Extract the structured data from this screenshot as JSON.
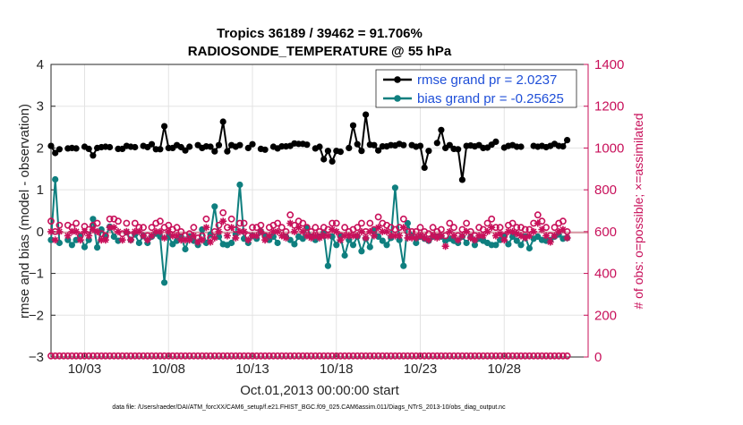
{
  "chart_data": {
    "type": "line",
    "title": "Tropics 36189 / 39462 = 91.706%",
    "subtitle": "RADIOSONDE_TEMPERATURE @ 55 hPa",
    "xlabel": "Oct.01,2013 00:00:00 start",
    "ylabel": "rmse and bias (model - observation)",
    "ylabel_right": "# of obs: o=possible; ×=assimilated",
    "ylim": [
      -3,
      4
    ],
    "ylim_right": [
      0,
      1400
    ],
    "xlim": [
      1,
      33
    ],
    "yticks": [
      "4",
      "3",
      "2",
      "1",
      "0",
      "−1",
      "−2",
      "−3"
    ],
    "yticks_right": [
      "1400",
      "1200",
      "1000",
      "800",
      "600",
      "400",
      "200",
      "0"
    ],
    "xticks": [
      {
        "pos": 3,
        "label": "10/03"
      },
      {
        "pos": 8,
        "label": "10/08"
      },
      {
        "pos": 13,
        "label": "10/13"
      },
      {
        "pos": 18,
        "label": "10/18"
      },
      {
        "pos": 23,
        "label": "10/23"
      },
      {
        "pos": 28,
        "label": "10/28"
      }
    ],
    "x_start": 1.0,
    "x_step": 0.25,
    "series": [
      {
        "name": "rmse grand pr = 2.0237",
        "axis": "left",
        "color": "#000000",
        "marker": "dot",
        "values": [
          2.05,
          1.88,
          1.97,
          null,
          1.99,
          2.0,
          1.99,
          null,
          2.03,
          1.98,
          1.82,
          2.0,
          2.02,
          2.03,
          2.02,
          null,
          1.98,
          1.98,
          2.05,
          2.03,
          2.02,
          null,
          2.05,
          2.02,
          2.09,
          1.97,
          1.97,
          2.52,
          2.0,
          2.0,
          2.07,
          2.02,
          1.94,
          2.03,
          null,
          2.07,
          2.0,
          2.04,
          2.03,
          1.92,
          2.07,
          2.63,
          1.92,
          2.07,
          2.03,
          2.07,
          null,
          2.0,
          2.09,
          null,
          1.98,
          1.96,
          null,
          2.03,
          1.99,
          2.04,
          2.04,
          2.05,
          2.11,
          2.1,
          2.1,
          2.08,
          null,
          1.99,
          2.03,
          1.73,
          1.93,
          1.68,
          1.93,
          1.91,
          null,
          2.0,
          2.54,
          2.09,
          1.93,
          2.8,
          2.08,
          2.07,
          1.94,
          2.04,
          2.04,
          2.07,
          2.06,
          2.1,
          2.07,
          null,
          2.07,
          2.03,
          2.05,
          1.53,
          1.93,
          null,
          2.12,
          2.43,
          2.0,
          2.07,
          1.98,
          1.97,
          1.24,
          2.05,
          2.06,
          2.04,
          2.07,
          2.0,
          2.01,
          2.08,
          2.15,
          null,
          2.01,
          2.05,
          2.07,
          2.03,
          2.03,
          null,
          null,
          2.05,
          2.03,
          2.05,
          2.02,
          2.05,
          2.1,
          2.05,
          2.04,
          2.19
        ],
        "legend": "rmse grand pr = 2.0237"
      },
      {
        "name": "bias grand pr = -0.25625",
        "axis": "left",
        "color": "#0f7f7f",
        "marker": "dot",
        "values": [
          -0.2,
          1.25,
          -0.27,
          null,
          -0.2,
          -0.32,
          -0.2,
          -0.1,
          -0.37,
          -0.2,
          0.3,
          -0.38,
          0.05,
          -0.12,
          0.12,
          -0.12,
          -0.22,
          null,
          -0.02,
          -0.2,
          -0.07,
          -0.27,
          -0.1,
          -0.27,
          -0.12,
          -0.05,
          -0.12,
          -1.22,
          -0.12,
          -0.3,
          -0.22,
          -0.12,
          -0.42,
          -0.12,
          -0.22,
          -0.32,
          0.05,
          -0.27,
          -0.07,
          0.6,
          -0.12,
          -0.3,
          -0.32,
          -0.27,
          -0.07,
          1.12,
          -0.17,
          -0.27,
          -0.1,
          -0.17,
          0.0,
          -0.12,
          -0.2,
          -0.12,
          -0.27,
          null,
          -0.12,
          -0.2,
          -0.3,
          -0.12,
          -0.17,
          0.1,
          -0.12,
          -0.2,
          -0.12,
          -0.02,
          -0.82,
          -0.12,
          -0.32,
          -0.12,
          -0.57,
          -0.2,
          -0.32,
          -0.12,
          -0.47,
          -0.17,
          -0.37,
          0.02,
          -0.12,
          -0.22,
          -0.32,
          -0.15,
          1.05,
          -0.2,
          -0.82,
          0.2,
          -0.1,
          -0.27,
          -0.12,
          -0.17,
          -0.22,
          -0.12,
          -0.12,
          -0.12,
          -0.22,
          -0.17,
          -0.22,
          -0.27,
          -0.12,
          -0.27,
          -0.12,
          -0.32,
          -0.17,
          -0.22,
          -0.27,
          -0.32,
          -0.32,
          -0.2,
          -0.12,
          -0.3,
          -0.12,
          -0.22,
          -0.32,
          -0.12,
          -0.4,
          -0.17,
          -0.12,
          -0.2,
          -0.22,
          -0.2,
          -0.12,
          -0.07,
          -0.17,
          -0.15
        ],
        "legend": "bias grand pr = -0.25625"
      },
      {
        "name": "possible obs",
        "axis": "right",
        "color": "#c8105a",
        "marker": "circle",
        "values": [
          650,
          600,
          630,
          null,
          630,
          620,
          640,
          580,
          625,
          610,
          630,
          640,
          590,
          580,
          660,
          660,
          650,
          590,
          640,
          580,
          640,
          620,
          620,
          580,
          620,
          640,
          650,
          620,
          630,
          610,
          620,
          600,
          580,
          590,
          620,
          570,
          580,
          660,
          570,
          600,
          630,
          690,
          620,
          660,
          610,
          640,
          640,
          580,
          620,
          620,
          630,
          580,
          620,
          630,
          640,
          620,
          600,
          680,
          630,
          650,
          640,
          620,
          600,
          620,
          600,
          620,
          610,
          640,
          640,
          580,
          620,
          600,
          610,
          620,
          640,
          600,
          640,
          610,
          670,
          640,
          630,
          620,
          610,
          620,
          660,
          600,
          600,
          600,
          620,
          600,
          590,
          620,
          600,
          610,
          580,
          640,
          620,
          580,
          610,
          640,
          600,
          580,
          620,
          610,
          640,
          660,
          620,
          620,
          580,
          630,
          640,
          620,
          620,
          610,
          610,
          640,
          680,
          650,
          620,
          580,
          620,
          640,
          650,
          600
        ],
        "legend": ""
      },
      {
        "name": "assimilated obs",
        "axis": "right",
        "color": "#c8105a",
        "marker": "star",
        "values": [
          600,
          560,
          600,
          null,
          580,
          600,
          600,
          560,
          600,
          580,
          610,
          600,
          560,
          560,
          620,
          620,
          600,
          560,
          600,
          560,
          600,
          600,
          580,
          560,
          580,
          600,
          600,
          570,
          600,
          580,
          580,
          560,
          560,
          560,
          580,
          550,
          560,
          620,
          550,
          570,
          600,
          650,
          580,
          620,
          570,
          600,
          600,
          560,
          580,
          580,
          600,
          560,
          580,
          600,
          600,
          580,
          570,
          640,
          600,
          620,
          600,
          580,
          570,
          580,
          570,
          580,
          580,
          610,
          600,
          560,
          580,
          580,
          580,
          580,
          600,
          570,
          600,
          580,
          620,
          600,
          600,
          580,
          580,
          580,
          620,
          570,
          570,
          570,
          580,
          570,
          560,
          580,
          570,
          580,
          530,
          600,
          580,
          560,
          580,
          600,
          570,
          560,
          580,
          580,
          600,
          620,
          580,
          590,
          560,
          600,
          600,
          590,
          580,
          570,
          580,
          600,
          640,
          610,
          580,
          550,
          580,
          600,
          610,
          570
        ],
        "legend": ""
      },
      {
        "name": "possible obs baseline",
        "axis": "right",
        "color": "#c8105a",
        "marker": "circle",
        "values": [
          5,
          5,
          5,
          5,
          5,
          5,
          5,
          5,
          5,
          5,
          5,
          5,
          5,
          5,
          5,
          5,
          5,
          5,
          5,
          5,
          5,
          5,
          5,
          5,
          5,
          5,
          5,
          5,
          5,
          5,
          5,
          5,
          5,
          5,
          5,
          5,
          5,
          5,
          5,
          5,
          5,
          5,
          5,
          5,
          5,
          5,
          5,
          5,
          5,
          5,
          5,
          5,
          5,
          5,
          5,
          5,
          5,
          5,
          5,
          5,
          5,
          5,
          5,
          5,
          5,
          5,
          5,
          5,
          5,
          5,
          5,
          5,
          5,
          5,
          5,
          5,
          5,
          5,
          5,
          5,
          5,
          5,
          5,
          5,
          5,
          5,
          5,
          5,
          5,
          5,
          5,
          5,
          5,
          5,
          5,
          5,
          5,
          5,
          5,
          5,
          5,
          5,
          5,
          5,
          5,
          5,
          5,
          5,
          5,
          5,
          5,
          5,
          5,
          5,
          5,
          5,
          5,
          5,
          5,
          5,
          5,
          5,
          5,
          5
        ],
        "legend": ""
      }
    ],
    "footnote": "data file: /Users/raeder/DAI/ATM_forcXX/CAM6_setup/f.e21.FHIST_BGC.f09_025.CAM6assim.011/Diags_NTrS_2013-10/obs_diag_output.nc"
  }
}
